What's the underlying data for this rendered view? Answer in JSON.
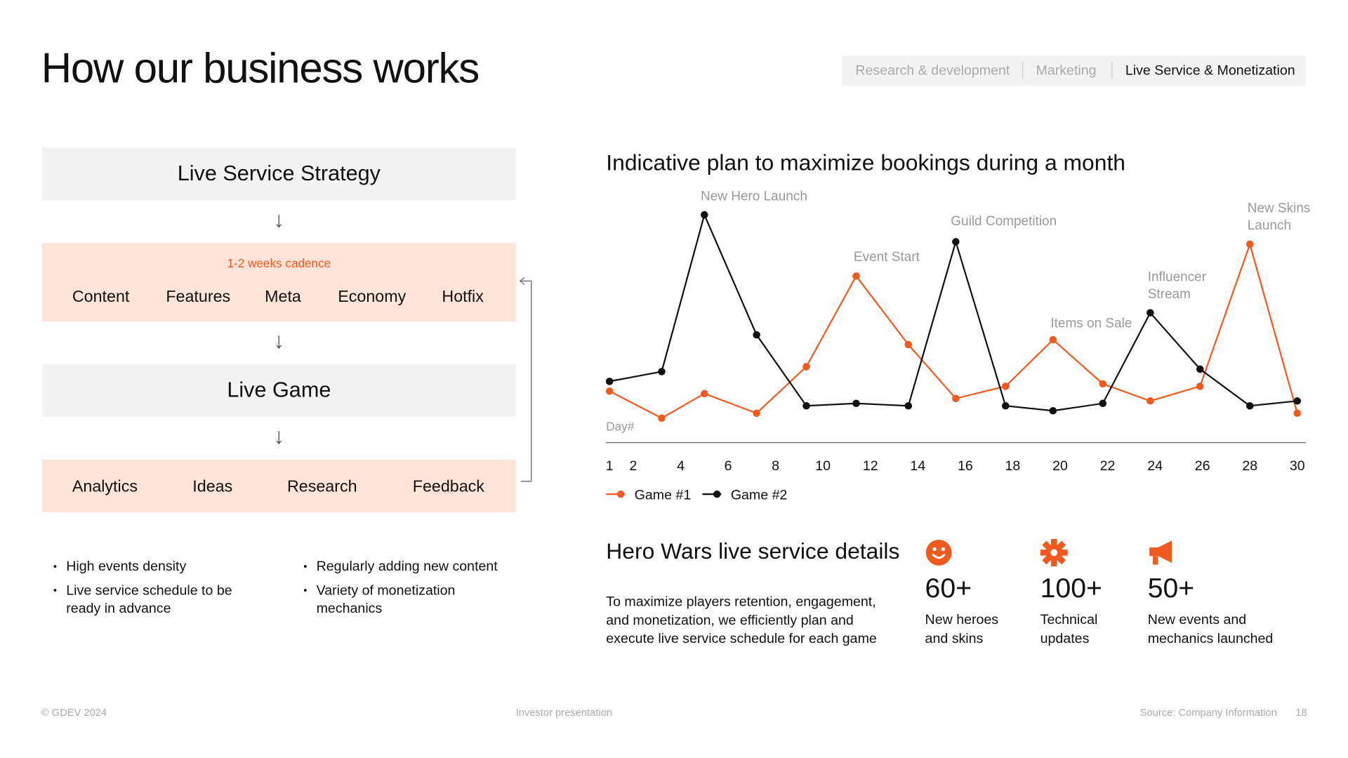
{
  "header": {
    "title": "How our business works",
    "tabs": [
      "Research & development",
      "Marketing",
      "Live Service & Monetization"
    ]
  },
  "flow": {
    "strategy": "Live Service Strategy",
    "cadence": "1-2 weeks cadence",
    "cadence_items": [
      "Content",
      "Features",
      "Meta",
      "Economy",
      "Hotfix"
    ],
    "game": "Live Game",
    "feedback_items": [
      "Analytics",
      "Ideas",
      "Research",
      "Feedback"
    ]
  },
  "bullets": [
    "High events density",
    "Live service schedule to be ready in advance",
    "Regularly adding new content",
    "Variety of monetization mechanics"
  ],
  "chart_data": {
    "type": "line",
    "title": "Indicative plan to maximize bookings during a month",
    "x_label": "Day#",
    "x": [
      1,
      3.2,
      5,
      7.2,
      9.3,
      11.4,
      13.6,
      15.6,
      17.7,
      19.7,
      21.8,
      23.8,
      25.9,
      28,
      30
    ],
    "xlim": [
      1,
      30
    ],
    "xticks": [
      1,
      2,
      4,
      6,
      8,
      10,
      12,
      14,
      16,
      18,
      20,
      22,
      24,
      26,
      28,
      30
    ],
    "ylim": [
      0,
      100
    ],
    "series": [
      {
        "name": "Game #1",
        "color": "#f05a1e",
        "values": [
          21,
          10,
          20,
          12,
          31,
          68,
          40,
          18,
          23,
          42,
          24,
          17,
          23,
          81,
          12
        ]
      },
      {
        "name": "Game #2",
        "color": "#111111",
        "values": [
          25,
          29,
          93,
          44,
          15,
          16,
          15,
          82,
          15,
          13,
          16,
          53,
          30,
          15,
          17
        ]
      }
    ],
    "annotations": [
      "New Hero Launch",
      "Event Start",
      "Guild Competition",
      "Items on Sale",
      "Influencer Stream",
      "New Skins Launch"
    ],
    "legend": "bottom-left"
  },
  "details": {
    "title": "Hero Wars live service details",
    "text": "To maximize players retention, engagement, and monetization, we efficiently plan and execute live service schedule for each game",
    "stats": [
      {
        "value": "60+",
        "label": "New heroes and skins"
      },
      {
        "value": "100+",
        "label": "Technical updates"
      },
      {
        "value": "50+",
        "label": "New events and mechanics launched"
      }
    ]
  },
  "footer": {
    "copyright": "© GDEV 2024",
    "center": "Investor presentation",
    "source": "Source: Company Information",
    "page": "18"
  }
}
